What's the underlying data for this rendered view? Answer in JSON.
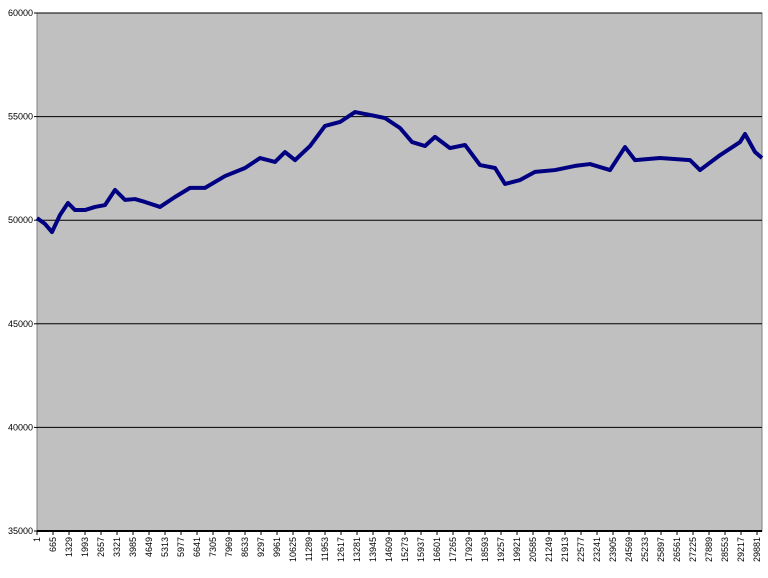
{
  "chart_data": {
    "type": "line",
    "x": [
      1,
      333,
      623,
      955,
      1287,
      1578,
      1993,
      2408,
      2823,
      3238,
      3653,
      4068,
      4483,
      5106,
      5728,
      6351,
      6973,
      7803,
      8633,
      9256,
      9878,
      10293,
      10708,
      11331,
      11953,
      12576,
      13198,
      13821,
      14443,
      15066,
      15564,
      16103,
      16518,
      17141,
      17763,
      18386,
      19008,
      19423,
      20046,
      20668,
      21498,
      22328,
      22951,
      23781,
      24403,
      24818,
      25856,
      27101,
      27516,
      28346,
      29176,
      29383,
      29798,
      30088
    ],
    "series": [
      {
        "color": "#000080",
        "values": [
          50100,
          49820,
          49430,
          50250,
          50830,
          50490,
          50490,
          50640,
          50730,
          51460,
          50980,
          51020,
          50880,
          50640,
          51120,
          51560,
          51560,
          52130,
          52520,
          53000,
          52810,
          53290,
          52900,
          53580,
          54550,
          54740,
          55220,
          55080,
          54930,
          54450,
          53770,
          53580,
          54020,
          53480,
          53630,
          52660,
          52520,
          51750,
          51940,
          52330,
          52420,
          52620,
          52710,
          52420,
          53530,
          52900,
          53000,
          52900,
          52420,
          53140,
          53770,
          54160,
          53290,
          53000
        ]
      }
    ],
    "xlim": [
      1,
      30088
    ],
    "xticks": [
      1,
      665,
      1329,
      1993,
      2657,
      3321,
      3985,
      4649,
      5313,
      5977,
      6641,
      7305,
      7969,
      8633,
      9297,
      9961,
      10625,
      11289,
      11953,
      12617,
      13281,
      13945,
      14609,
      15273,
      15937,
      16601,
      17265,
      17929,
      18593,
      19257,
      19921,
      20585,
      21249,
      21913,
      22577,
      23241,
      23905,
      24569,
      25233,
      25897,
      26561,
      27225,
      27889,
      28553,
      29217,
      29881
    ],
    "ylim": [
      35000,
      60000
    ],
    "yticks": [
      35000,
      40000,
      45000,
      50000,
      55000,
      60000
    ],
    "grid": true
  }
}
